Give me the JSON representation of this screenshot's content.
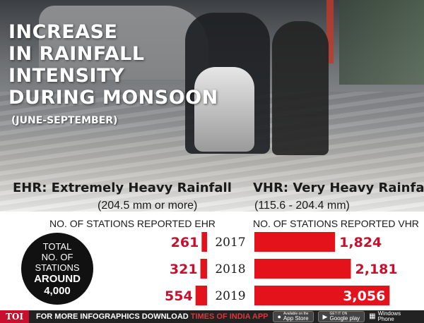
{
  "headline": {
    "lines": [
      "INCREASE",
      "IN RAINFALL",
      "INTENSITY",
      "DURING MONSOON"
    ],
    "subtitle": "(JUNE-SEPTEMBER)"
  },
  "ehr": {
    "title": "EHR: Extremely Heavy Rainfall",
    "range": "(204.5 mm or more)",
    "column_label": "NO. OF STATIONS REPORTED EHR"
  },
  "vhr": {
    "title": "VHR: Very Heavy Rainfall",
    "range": "(115.6 - 204.4 mm)",
    "column_label": "NO. OF STATIONS REPORTED VHR"
  },
  "total_stations": {
    "lines": [
      "TOTAL",
      "NO. OF",
      "STATIONS"
    ],
    "around": "AROUND",
    "value": "4,000"
  },
  "chart_data": {
    "type": "bar",
    "categories": [
      "2017",
      "2018",
      "2019"
    ],
    "series": [
      {
        "name": "EHR",
        "values": [
          261,
          321,
          554
        ],
        "labels": [
          "261",
          "321",
          "554"
        ]
      },
      {
        "name": "VHR",
        "values": [
          1824,
          2181,
          3056
        ],
        "labels": [
          "1,824",
          "2,181",
          "3,056"
        ]
      }
    ],
    "bar_color": "#e3121b"
  },
  "footer": {
    "logo": "TOI",
    "text": "FOR MORE  INFOGRAPHICS DOWNLOAD",
    "brand": "TIMES OF INDIA  APP",
    "app_store_small": "Available on the",
    "app_store": "App Store",
    "google_small": "GET IT ON",
    "google": "Google play",
    "windows_line1": "Windows",
    "windows_line2": "Phone"
  }
}
